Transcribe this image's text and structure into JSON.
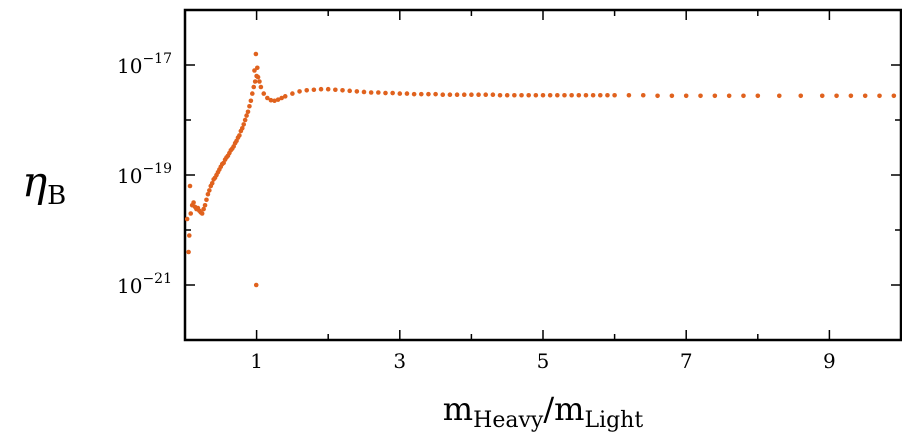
{
  "chart_data": {
    "type": "scatter",
    "title": "",
    "xlabel": {
      "main": "m",
      "sub": "Heavy",
      "sep": "/",
      "main2": "m",
      "sub2": "Light"
    },
    "ylabel": {
      "main": "η",
      "sub": "B"
    },
    "x_ticks": [
      1,
      3,
      5,
      7,
      9
    ],
    "x_tick_labels": [
      "1",
      "3",
      "5",
      "7",
      "9"
    ],
    "y_ticks": [
      -17,
      -19,
      -21
    ],
    "y_tick_labels": [
      {
        "base": "10",
        "exp": "−17"
      },
      {
        "base": "10",
        "exp": "−19"
      },
      {
        "base": "10",
        "exp": "−21"
      }
    ],
    "xlim": [
      0,
      10
    ],
    "ylim_log10": [
      -22,
      -16
    ],
    "y_scale": "log",
    "grid": false,
    "legend": "none",
    "marker_color": "#E0621E",
    "series": [
      {
        "points": [
          [
            0.03,
            -19.8
          ],
          [
            0.05,
            -20.4
          ],
          [
            0.06,
            -20.1
          ],
          [
            0.08,
            -19.7
          ],
          [
            0.1,
            -19.55
          ],
          [
            0.12,
            -19.5
          ],
          [
            0.14,
            -19.58
          ],
          [
            0.16,
            -19.62
          ],
          [
            0.18,
            -19.6
          ],
          [
            0.2,
            -19.65
          ],
          [
            0.22,
            -19.68
          ],
          [
            0.24,
            -19.7
          ],
          [
            0.26,
            -19.62
          ],
          [
            0.28,
            -19.55
          ],
          [
            0.3,
            -19.45
          ],
          [
            0.32,
            -19.35
          ],
          [
            0.34,
            -19.28
          ],
          [
            0.36,
            -19.2
          ],
          [
            0.38,
            -19.15
          ],
          [
            0.4,
            -19.08
          ],
          [
            0.42,
            -19.05
          ],
          [
            0.44,
            -19.0
          ],
          [
            0.46,
            -18.95
          ],
          [
            0.48,
            -18.9
          ],
          [
            0.5,
            -18.85
          ],
          [
            0.52,
            -18.8
          ],
          [
            0.54,
            -18.78
          ],
          [
            0.56,
            -18.72
          ],
          [
            0.58,
            -18.68
          ],
          [
            0.6,
            -18.65
          ],
          [
            0.62,
            -18.6
          ],
          [
            0.64,
            -18.55
          ],
          [
            0.66,
            -18.52
          ],
          [
            0.68,
            -18.48
          ],
          [
            0.7,
            -18.42
          ],
          [
            0.72,
            -18.38
          ],
          [
            0.74,
            -18.32
          ],
          [
            0.76,
            -18.28
          ],
          [
            0.78,
            -18.2
          ],
          [
            0.8,
            -18.15
          ],
          [
            0.82,
            -18.08
          ],
          [
            0.84,
            -18.0
          ],
          [
            0.86,
            -17.92
          ],
          [
            0.88,
            -17.85
          ],
          [
            0.9,
            -17.75
          ],
          [
            0.92,
            -17.65
          ],
          [
            0.94,
            -17.52
          ],
          [
            0.96,
            -17.4
          ],
          [
            0.98,
            -17.3
          ],
          [
            1.0,
            -17.2
          ],
          [
            1.02,
            -17.22
          ],
          [
            1.04,
            -17.3
          ],
          [
            1.06,
            -17.4
          ],
          [
            1.1,
            -17.52
          ],
          [
            1.15,
            -17.6
          ],
          [
            1.2,
            -17.64
          ],
          [
            1.25,
            -17.65
          ],
          [
            1.3,
            -17.63
          ],
          [
            1.35,
            -17.6
          ],
          [
            1.4,
            -17.57
          ],
          [
            1.5,
            -17.52
          ],
          [
            1.6,
            -17.48
          ],
          [
            1.7,
            -17.46
          ],
          [
            1.8,
            -17.45
          ],
          [
            1.9,
            -17.44
          ],
          [
            2.0,
            -17.44
          ],
          [
            2.1,
            -17.45
          ],
          [
            2.2,
            -17.46
          ],
          [
            2.3,
            -17.47
          ],
          [
            2.4,
            -17.48
          ],
          [
            2.5,
            -17.49
          ],
          [
            2.6,
            -17.5
          ],
          [
            2.7,
            -17.5
          ],
          [
            2.8,
            -17.51
          ],
          [
            2.9,
            -17.51
          ],
          [
            3.0,
            -17.52
          ],
          [
            3.1,
            -17.52
          ],
          [
            3.2,
            -17.53
          ],
          [
            3.3,
            -17.53
          ],
          [
            3.4,
            -17.53
          ],
          [
            3.5,
            -17.53
          ],
          [
            3.6,
            -17.54
          ],
          [
            3.7,
            -17.54
          ],
          [
            3.8,
            -17.54
          ],
          [
            3.9,
            -17.54
          ],
          [
            4.0,
            -17.54
          ],
          [
            4.1,
            -17.54
          ],
          [
            4.2,
            -17.54
          ],
          [
            4.3,
            -17.54
          ],
          [
            4.4,
            -17.55
          ],
          [
            4.5,
            -17.55
          ],
          [
            4.6,
            -17.55
          ],
          [
            4.7,
            -17.55
          ],
          [
            4.8,
            -17.55
          ],
          [
            4.9,
            -17.55
          ],
          [
            5.0,
            -17.55
          ],
          [
            5.1,
            -17.55
          ],
          [
            5.2,
            -17.55
          ],
          [
            5.3,
            -17.55
          ],
          [
            5.4,
            -17.55
          ],
          [
            5.5,
            -17.55
          ],
          [
            5.6,
            -17.55
          ],
          [
            5.7,
            -17.55
          ],
          [
            5.8,
            -17.55
          ],
          [
            5.9,
            -17.55
          ],
          [
            6.0,
            -17.55
          ],
          [
            6.2,
            -17.55
          ],
          [
            6.4,
            -17.55
          ],
          [
            6.6,
            -17.56
          ],
          [
            6.8,
            -17.56
          ],
          [
            7.0,
            -17.56
          ],
          [
            7.2,
            -17.56
          ],
          [
            7.4,
            -17.56
          ],
          [
            7.6,
            -17.56
          ],
          [
            7.8,
            -17.56
          ],
          [
            8.0,
            -17.56
          ],
          [
            8.3,
            -17.56
          ],
          [
            8.6,
            -17.56
          ],
          [
            8.9,
            -17.56
          ],
          [
            9.1,
            -17.56
          ],
          [
            9.3,
            -17.56
          ],
          [
            9.5,
            -17.56
          ],
          [
            9.7,
            -17.56
          ],
          [
            9.9,
            -17.56
          ],
          [
            0.99,
            -16.8
          ],
          [
            0.97,
            -17.1
          ],
          [
            1.01,
            -17.05
          ],
          [
            0.995,
            -21.0
          ],
          [
            0.07,
            -19.2
          ]
        ]
      }
    ]
  }
}
